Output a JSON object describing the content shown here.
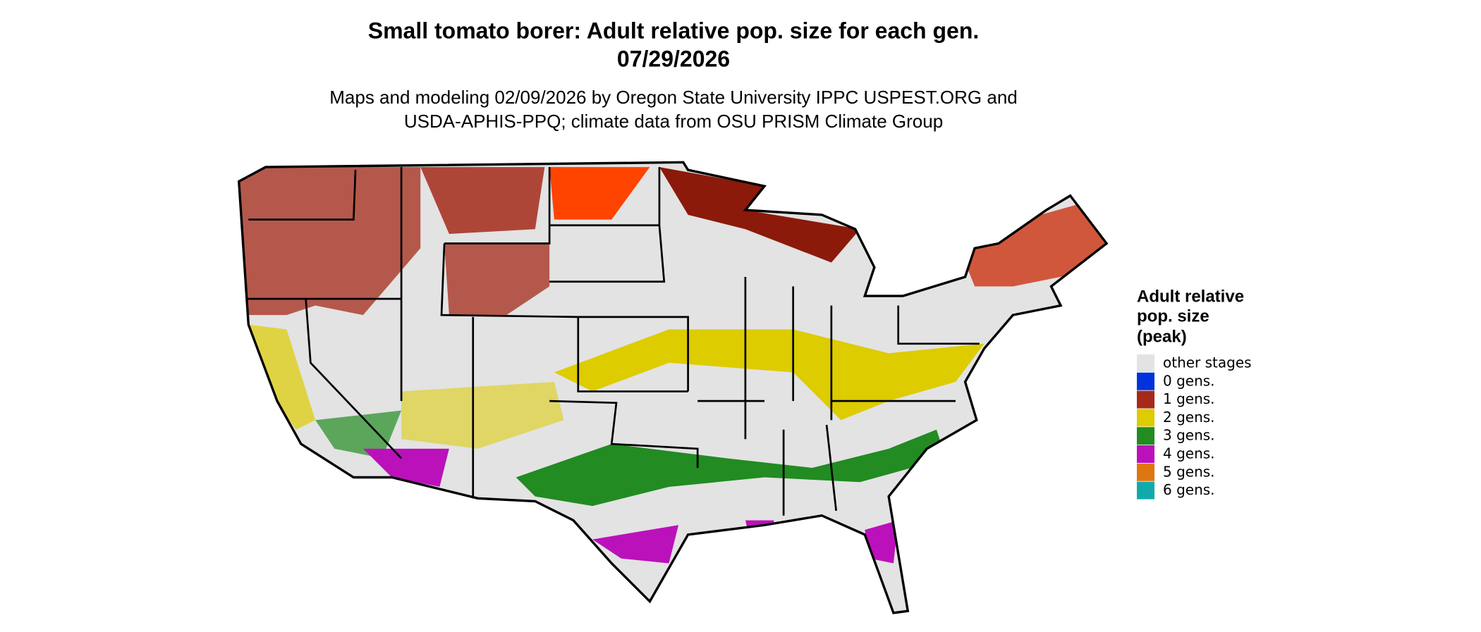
{
  "header": {
    "title": [
      "Small tomato borer: Adult relative pop. size for each gen.",
      "07/29/2026"
    ],
    "subtitle": [
      "Maps and modeling 02/09/2026 by Oregon State University IPPC USPEST.ORG and",
      "USDA-APHIS-PPQ; climate data from OSU PRISM Climate Group"
    ]
  },
  "legend": {
    "title": [
      "Adult relative",
      "pop. size",
      "(peak)"
    ],
    "items": [
      {
        "label": "other stages",
        "color": "#e3e3e3"
      },
      {
        "label": "0 gens.",
        "color": "#0033dd"
      },
      {
        "label": "1 gens.",
        "color": "#a52a1a"
      },
      {
        "label": "2 gens.",
        "color": "#ddcc00"
      },
      {
        "label": "3 gens.",
        "color": "#228b22"
      },
      {
        "label": "4 gens.",
        "color": "#bb11bb"
      },
      {
        "label": "5 gens.",
        "color": "#dd7711"
      },
      {
        "label": "6 gens.",
        "color": "#11aaaa"
      }
    ]
  }
}
